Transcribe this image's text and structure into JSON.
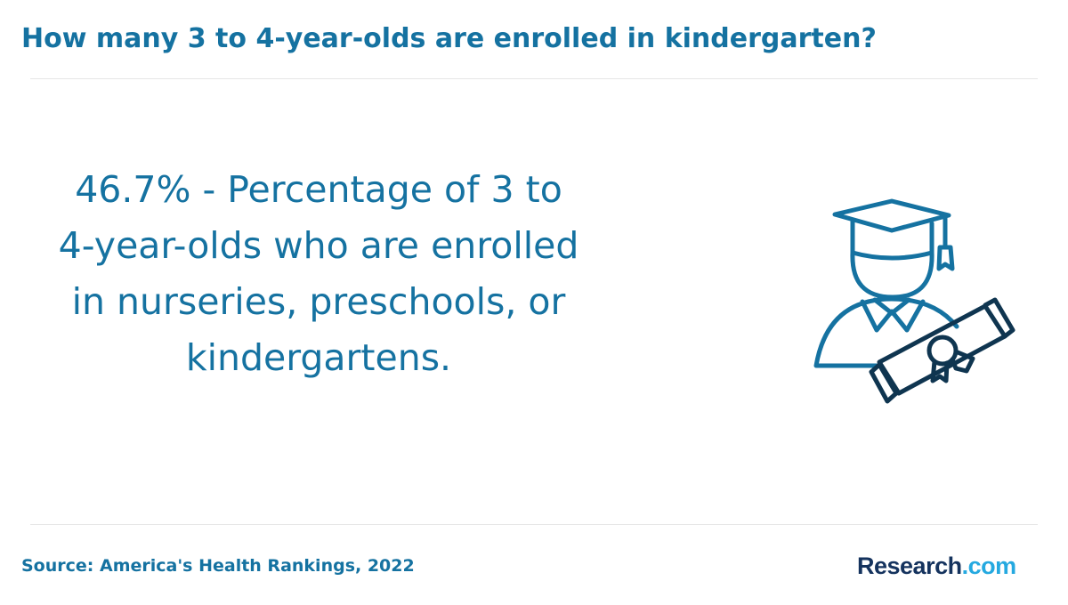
{
  "header": {
    "title": "How many 3 to 4-year-olds are enrolled in kindergarten?"
  },
  "stat": {
    "text": "46.7% - Percentage of 3 to 4-year-olds who are enrolled in nurseries, preschools, or kindergartens."
  },
  "illustration": {
    "icon": "graduate-with-diploma-icon",
    "colors": {
      "primary": "#1572a1",
      "secondary": "#0f3550"
    }
  },
  "footer": {
    "source": "Source: America's Health Rankings, 2022",
    "logo": {
      "brand": "Research",
      "tld": ".com"
    }
  }
}
